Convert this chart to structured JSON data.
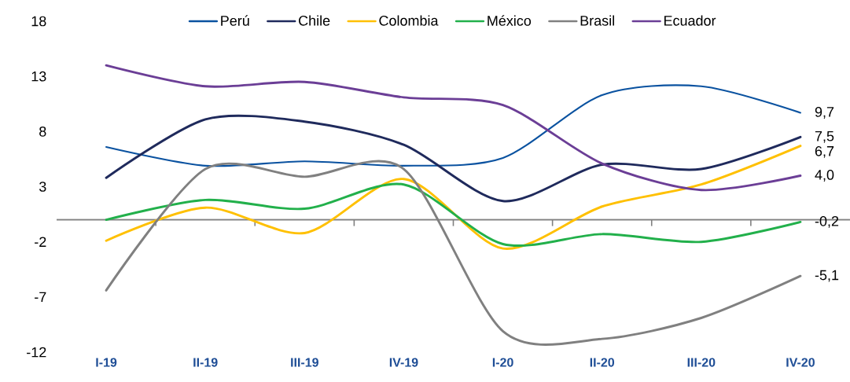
{
  "chart_data": {
    "type": "line",
    "categories": [
      "I-19",
      "II-19",
      "III-19",
      "IV-19",
      "I-20",
      "II-20",
      "III-20",
      "IV-20"
    ],
    "series": [
      {
        "name": "Perú",
        "color": "#0a52a0",
        "values": [
          6.6,
          4.9,
          5.3,
          4.9,
          5.6,
          11.3,
          12.1,
          9.7
        ],
        "value_labels": [
          null,
          null,
          null,
          null,
          null,
          null,
          null,
          "9,7"
        ]
      },
      {
        "name": "Chile",
        "color": "#1f2a5c",
        "values": [
          3.8,
          9.1,
          8.9,
          6.8,
          1.7,
          5.0,
          4.6,
          7.5
        ],
        "value_labels": [
          null,
          null,
          null,
          null,
          null,
          null,
          null,
          "7,5"
        ]
      },
      {
        "name": "Colombia",
        "color": "#ffc000",
        "values": [
          -1.9,
          1.1,
          -1.2,
          3.7,
          -2.6,
          1.2,
          3.2,
          6.7
        ],
        "value_labels": [
          null,
          null,
          null,
          null,
          null,
          null,
          null,
          "6,7"
        ]
      },
      {
        "name": "México",
        "color": "#22b04b",
        "values": [
          0.0,
          1.8,
          1.0,
          3.2,
          -2.2,
          -1.3,
          -2.0,
          -0.2
        ],
        "value_labels": [
          null,
          null,
          null,
          null,
          null,
          null,
          null,
          "-0,2"
        ]
      },
      {
        "name": "Brasil",
        "color": "#808080",
        "values": [
          -6.4,
          4.6,
          3.9,
          4.6,
          -10.1,
          -10.8,
          -8.9,
          -5.1
        ],
        "value_labels": [
          null,
          null,
          null,
          null,
          null,
          null,
          null,
          "-5,1"
        ]
      },
      {
        "name": "Ecuador",
        "color": "#6b3e96",
        "values": [
          14.0,
          12.1,
          12.5,
          11.1,
          10.4,
          5.1,
          2.7,
          4.0
        ],
        "value_labels": [
          null,
          null,
          null,
          null,
          null,
          null,
          null,
          "4,0"
        ]
      }
    ],
    "ylim": [
      -12,
      18
    ],
    "yticks": [
      -12,
      -7,
      -2,
      3,
      8,
      13,
      18
    ],
    "legend": "top",
    "marker": "none"
  }
}
